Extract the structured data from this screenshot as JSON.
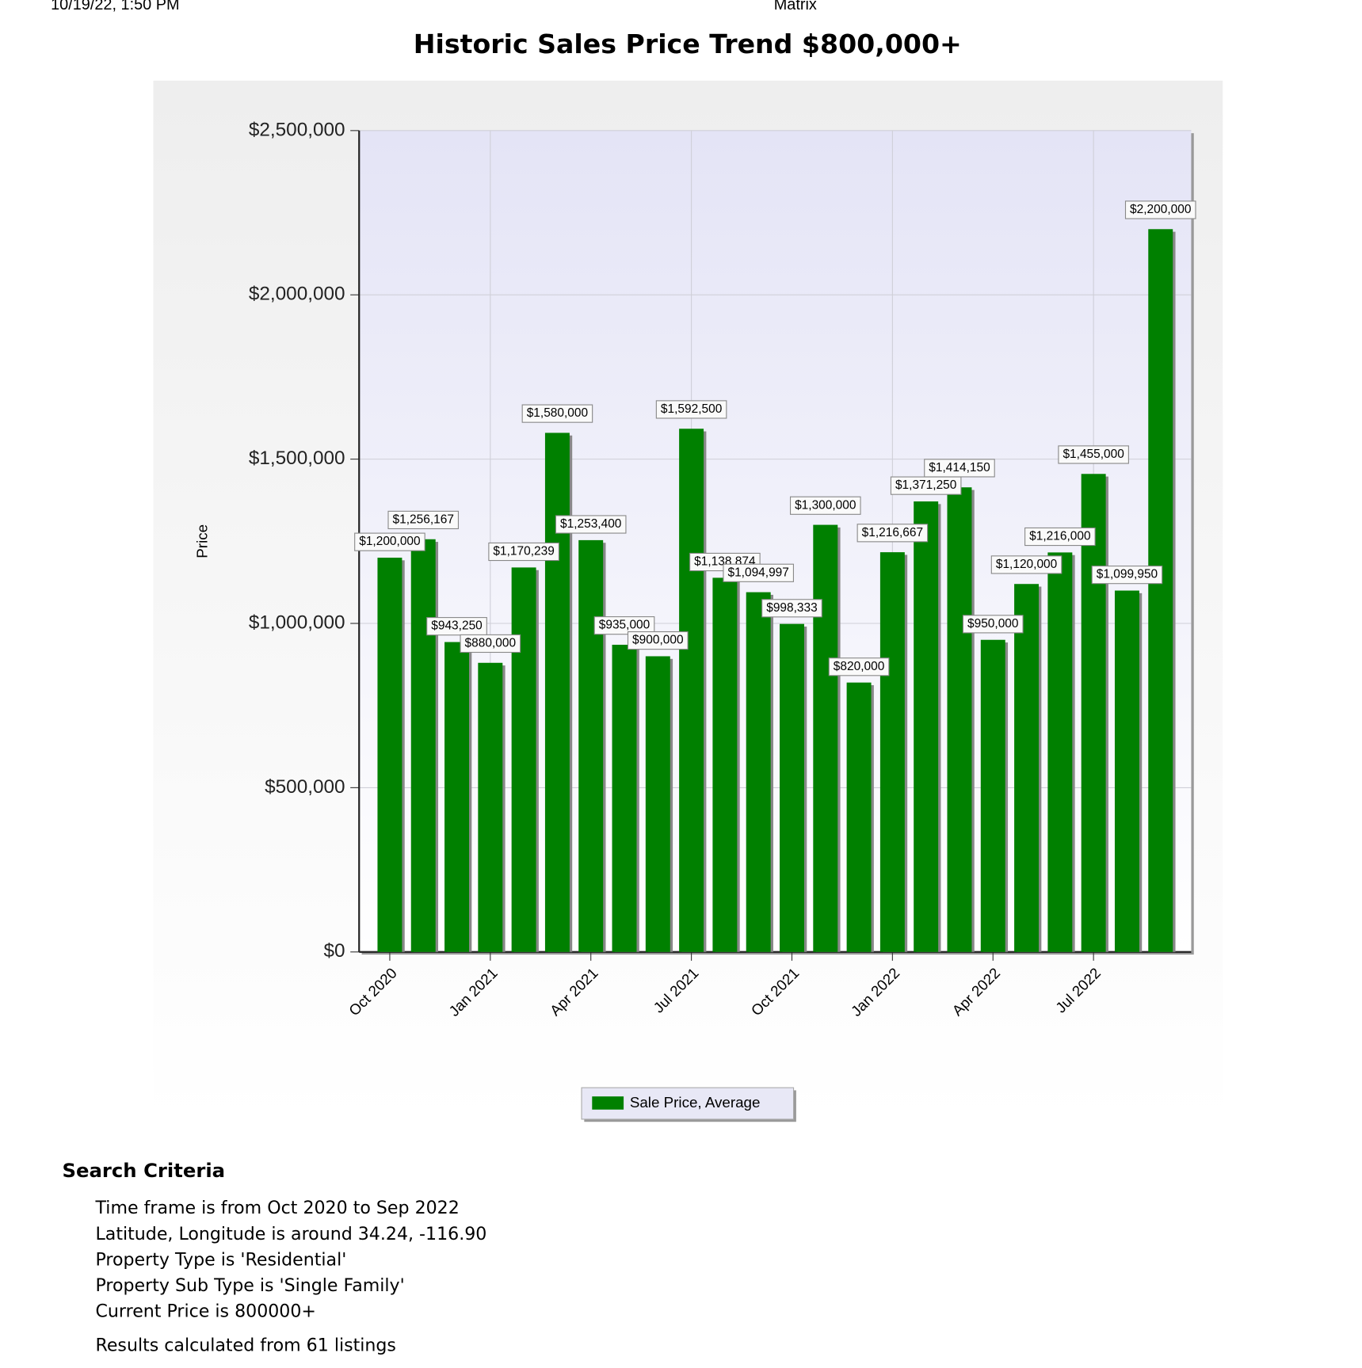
{
  "header": {
    "timestamp": "10/19/22, 1:50 PM",
    "app": "Matrix"
  },
  "chart_data": {
    "type": "bar",
    "title": "Historic Sales Price Trend $800,000+",
    "y_label": "Price",
    "categories": [
      "Oct 2020",
      null,
      null,
      "Jan 2021",
      null,
      null,
      "Apr 2021",
      null,
      null,
      "Jul 2021",
      null,
      null,
      "Oct 2021",
      null,
      null,
      "Jan 2022",
      null,
      null,
      "Apr 2022",
      null,
      null,
      "Jul 2022",
      null,
      null
    ],
    "series": [
      {
        "name": "Sale Price, Average",
        "color": "#008000",
        "values": [
          1200000,
          1256167,
          943250,
          880000,
          1170239,
          1580000,
          1253400,
          935000,
          900000,
          1592500,
          1138874,
          1094997,
          998333,
          1300000,
          820000,
          1216667,
          1371250,
          1414150,
          950000,
          1120000,
          1216000,
          1455000,
          1099950,
          2200000
        ],
        "value_labels": [
          "$1,200,000",
          "$1,256,167",
          "$943,250",
          "$880,000",
          "$1,170,239",
          "$1,580,000",
          "$1,253,400",
          "$935,000",
          "$900,000",
          "$1,592,500",
          "$1,138,874",
          "$1,094,997",
          "$998,333",
          "$1,300,000",
          "$820,000",
          "$1,216,667",
          "$1,371,250",
          "$1,414,150",
          "$950,000",
          "$1,120,000",
          "$1,216,000",
          "$1,455,000",
          "$1,099,950",
          "$2,200,000"
        ]
      }
    ],
    "ylim": [
      0,
      2500000
    ],
    "yticks": [
      {
        "value": 0,
        "label": "$0"
      },
      {
        "value": 500000,
        "label": "$500,000"
      },
      {
        "value": 1000000,
        "label": "$1,000,000"
      },
      {
        "value": 1500000,
        "label": "$1,500,000"
      },
      {
        "value": 2000000,
        "label": "$2,000,000"
      },
      {
        "value": 2500000,
        "label": "$2,500,000"
      }
    ],
    "grid": true,
    "legend": "bottom"
  },
  "search_criteria": {
    "title": "Search Criteria",
    "items": [
      "Time frame is from Oct 2020 to Sep 2022",
      "Latitude, Longitude is around 34.24, -116.90",
      "Property Type is 'Residential'",
      "Property Sub Type is 'Single Family'",
      "Current Price is 800000+"
    ],
    "results": "Results calculated from 61 listings"
  }
}
